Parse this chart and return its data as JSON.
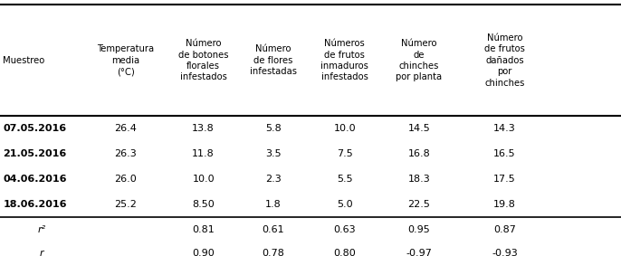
{
  "col_headers": [
    "Muestreo",
    "Temperatura\nmedia\n(°C)",
    "Número\nde botones\nflorales\ninfestados",
    "Número\nde flores\ninfestadas",
    "Números\nde frutos\ninmaduros\ninfestados",
    "Número\nde\nchinches\npor planta",
    "Número\nde frutos\ndañados\npor\nchinches"
  ],
  "data_rows": [
    [
      "07.05.2016",
      "26.4",
      "13.8",
      "5.8",
      "10.0",
      "14.5",
      "14.3"
    ],
    [
      "21.05.2016",
      "26.3",
      "11.8",
      "3.5",
      "7.5",
      "16.8",
      "16.5"
    ],
    [
      "04.06.2016",
      "26.0",
      "10.0",
      "2.3",
      "5.5",
      "18.3",
      "17.5"
    ],
    [
      "18.06.2016",
      "25.2",
      "8.50",
      "1.8",
      "5.0",
      "22.5",
      "19.8"
    ]
  ],
  "stat_rows": [
    [
      "r²",
      "",
      "0.81",
      "0.61",
      "0.63",
      "0.95",
      "0.87"
    ],
    [
      "r",
      "",
      "0.90",
      "0.78",
      "0.80",
      "-0.97",
      "-0.93"
    ]
  ],
  "date_bold": true,
  "background_color": "#ffffff"
}
